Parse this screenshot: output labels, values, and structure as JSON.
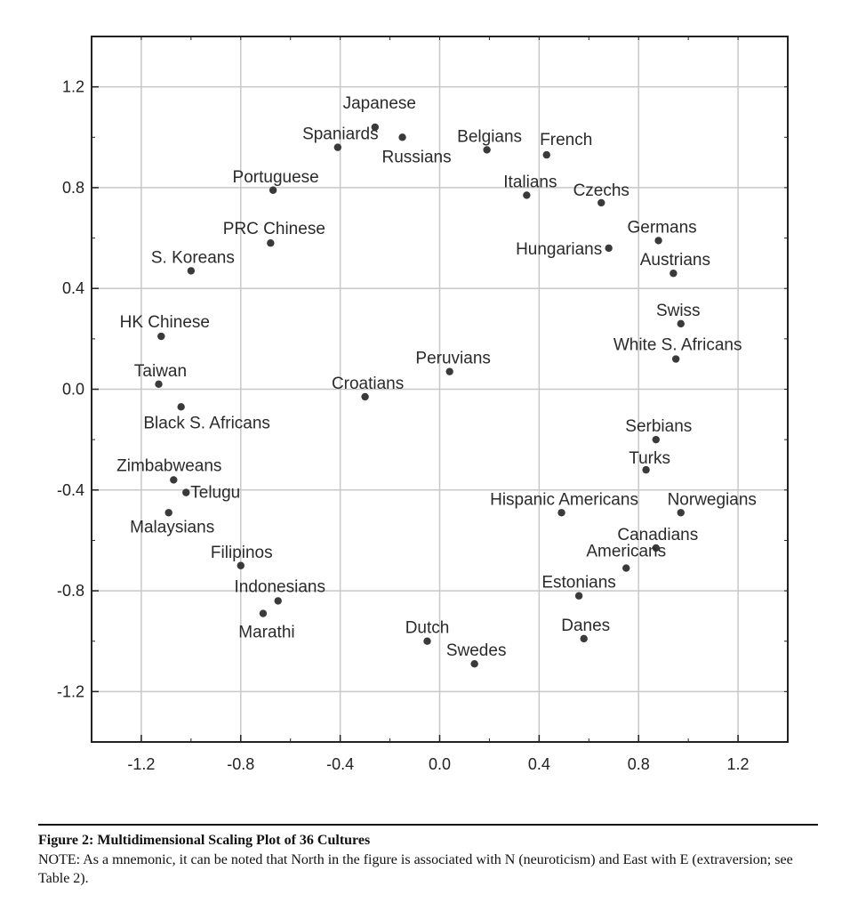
{
  "chart_data": {
    "type": "scatter",
    "title": "",
    "xlabel": "",
    "ylabel": "",
    "xlim": [
      -1.4,
      1.4
    ],
    "ylim": [
      -1.4,
      1.4
    ],
    "grid": true,
    "xticks": [
      -1.2,
      -0.8,
      -0.4,
      0.0,
      0.4,
      0.8,
      1.2
    ],
    "xtick_labels": [
      "-1.2",
      "-0.8",
      "-0.4",
      "0.0",
      "0.4",
      "0.8",
      "1.2"
    ],
    "yticks": [
      1.2,
      0.8,
      0.4,
      0.0,
      -0.4,
      -0.8,
      -1.2
    ],
    "ytick_labels": [
      "1.2",
      "0.8",
      "0.4",
      "0.0",
      "-0.4",
      "-0.8",
      "-1.2"
    ],
    "points": [
      {
        "label": "Japanese",
        "x": -0.26,
        "y": 1.04
      },
      {
        "label": "Spaniards",
        "x": -0.41,
        "y": 0.96
      },
      {
        "label": "Russians",
        "x": -0.15,
        "y": 1.0
      },
      {
        "label": "Belgians",
        "x": 0.19,
        "y": 0.95
      },
      {
        "label": "French",
        "x": 0.43,
        "y": 0.93
      },
      {
        "label": "Portuguese",
        "x": -0.67,
        "y": 0.79
      },
      {
        "label": "Italians",
        "x": 0.35,
        "y": 0.77
      },
      {
        "label": "Czechs",
        "x": 0.65,
        "y": 0.74
      },
      {
        "label": "PRC Chinese",
        "x": -0.68,
        "y": 0.58
      },
      {
        "label": "Germans",
        "x": 0.88,
        "y": 0.59
      },
      {
        "label": "Hungarians",
        "x": 0.68,
        "y": 0.56
      },
      {
        "label": "S. Koreans",
        "x": -1.0,
        "y": 0.47
      },
      {
        "label": "Austrians",
        "x": 0.94,
        "y": 0.46
      },
      {
        "label": "Swiss",
        "x": 0.97,
        "y": 0.26
      },
      {
        "label": "HK Chinese",
        "x": -1.12,
        "y": 0.21
      },
      {
        "label": "White S. Africans",
        "x": 0.95,
        "y": 0.12
      },
      {
        "label": "Peruvians",
        "x": 0.04,
        "y": 0.07
      },
      {
        "label": "Taiwan",
        "x": -1.13,
        "y": 0.02
      },
      {
        "label": "Croatians",
        "x": -0.3,
        "y": -0.03
      },
      {
        "label": "Black S. Africans",
        "x": -1.04,
        "y": -0.07
      },
      {
        "label": "Serbians",
        "x": 0.87,
        "y": -0.2
      },
      {
        "label": "Turks",
        "x": 0.83,
        "y": -0.32
      },
      {
        "label": "Zimbabweans",
        "x": -1.07,
        "y": -0.36
      },
      {
        "label": "Telugu",
        "x": -1.02,
        "y": -0.41
      },
      {
        "label": "Hispanic Americans",
        "x": 0.49,
        "y": -0.49
      },
      {
        "label": "Norwegians",
        "x": 0.97,
        "y": -0.49
      },
      {
        "label": "Malaysians",
        "x": -1.09,
        "y": -0.49
      },
      {
        "label": "Canadians",
        "x": 0.87,
        "y": -0.63
      },
      {
        "label": "Americans",
        "x": 0.75,
        "y": -0.71
      },
      {
        "label": "Filipinos",
        "x": -0.8,
        "y": -0.7
      },
      {
        "label": "Estonians",
        "x": 0.56,
        "y": -0.82
      },
      {
        "label": "Indonesians",
        "x": -0.65,
        "y": -0.84
      },
      {
        "label": "Marathi",
        "x": -0.71,
        "y": -0.89
      },
      {
        "label": "Dutch",
        "x": -0.05,
        "y": -1.0
      },
      {
        "label": "Danes",
        "x": 0.58,
        "y": -0.99
      },
      {
        "label": "Swedes",
        "x": 0.14,
        "y": -1.09
      }
    ]
  },
  "caption": {
    "title": "Figure 2:  Multidimensional Scaling Plot of 36 Cultures",
    "note": "NOTE: As a mnemonic, it can be noted that North in the figure is associated with N (neuroticism) and East with E (extraversion; see Table 2)."
  },
  "colors": {
    "points": "#3a3a3a",
    "grid": "#c8c8c8",
    "frame": "#222222"
  }
}
